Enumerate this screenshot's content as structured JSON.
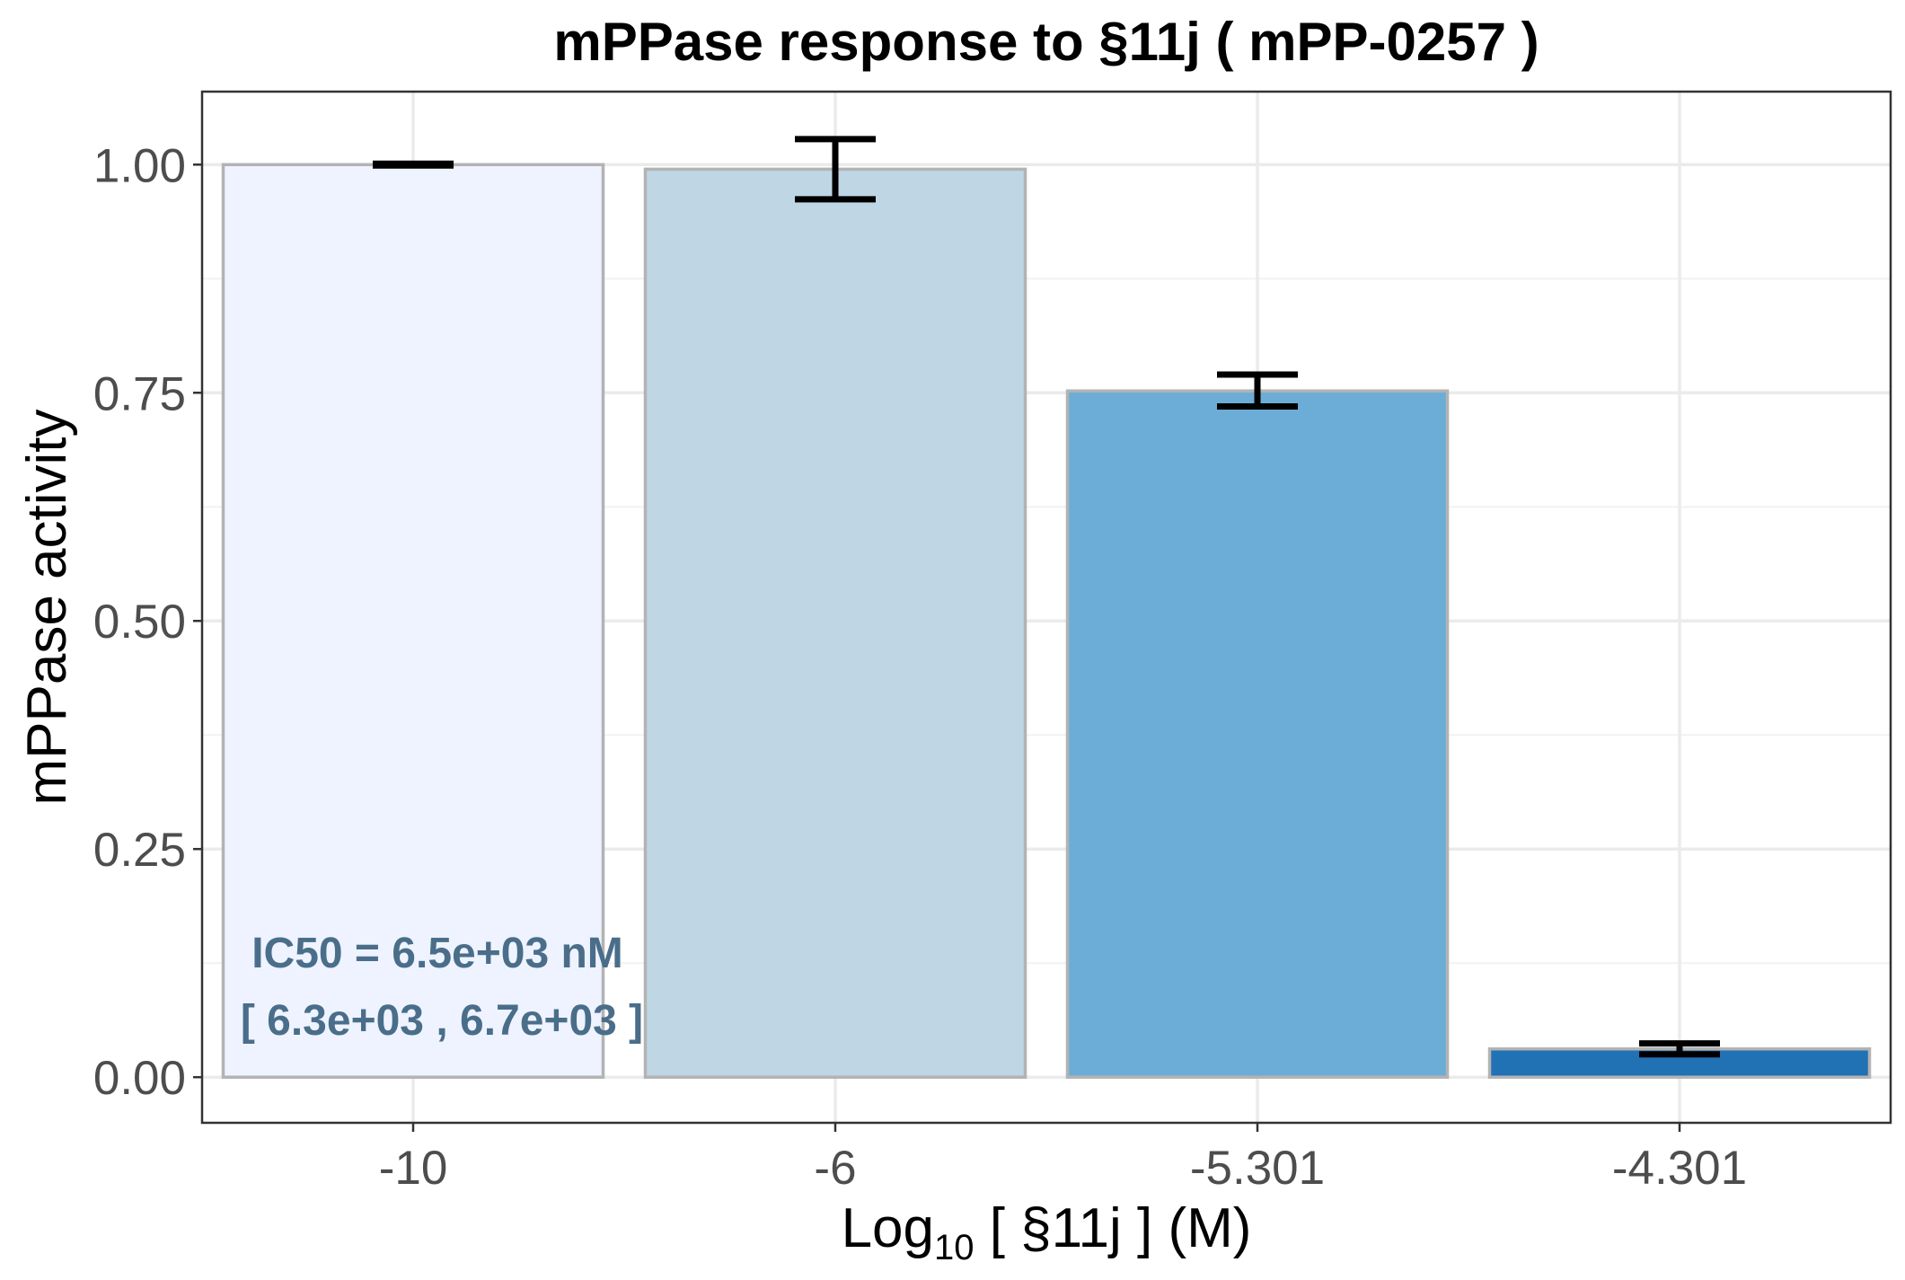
{
  "chart_data": {
    "type": "bar",
    "title": "mPPase response to §11j ( mPP-0257 )",
    "xlabel": {
      "prefix": "Log",
      "subscript": "10",
      "suffix": " [ §11j ] (M)"
    },
    "ylabel": "mPPase activity",
    "categories": [
      "-10",
      "-6",
      "-5.301",
      "-4.301"
    ],
    "values": [
      1.0,
      0.995,
      0.752,
      0.031
    ],
    "error_low": [
      0.999,
      0.962,
      0.735,
      0.025
    ],
    "error_high": [
      1.001,
      1.028,
      0.77,
      0.037
    ],
    "bar_colors": [
      "#eef3ff",
      "#bfd6e5",
      "#6badd6",
      "#2171b5"
    ],
    "ylim": [
      -0.05,
      1.08
    ],
    "yticks": [
      0.0,
      0.25,
      0.5,
      0.75,
      1.0
    ],
    "ytick_labels": [
      "0.00",
      "0.25",
      "0.50",
      "0.75",
      "1.00"
    ],
    "grid": true,
    "annotations": [
      "IC50 = 6.5e+03 nM",
      "[ 6.3e+03 , 6.7e+03 ]"
    ]
  }
}
